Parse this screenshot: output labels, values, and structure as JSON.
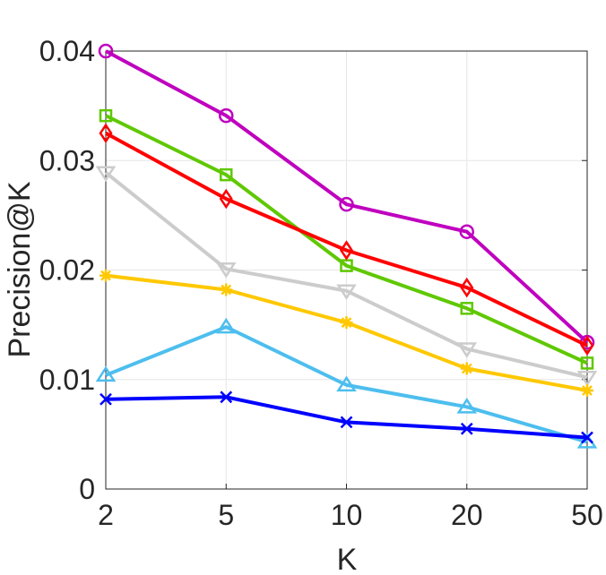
{
  "chart_data": {
    "type": "line",
    "xlabel": "K",
    "ylabel": "Precision@K",
    "categories": [
      "2",
      "5",
      "10",
      "20",
      "50"
    ],
    "ylim": [
      0,
      0.04
    ],
    "yticks": [
      "0",
      "0.01",
      "0.02",
      "0.03",
      "0.04"
    ],
    "grid": true,
    "series": [
      {
        "color": "#bf00bf",
        "marker": "circle",
        "values": [
          0.04,
          0.0341,
          0.026,
          0.0235,
          0.0134
        ]
      },
      {
        "color": "#5fc800",
        "marker": "square",
        "values": [
          0.0341,
          0.0287,
          0.0204,
          0.0165,
          0.0115
        ]
      },
      {
        "color": "#ff0000",
        "marker": "diamond",
        "values": [
          0.0325,
          0.0265,
          0.0218,
          0.0184,
          0.0131
        ]
      },
      {
        "color": "#cccccc",
        "marker": "triangle-down",
        "values": [
          0.0289,
          0.0201,
          0.0181,
          0.0128,
          0.0102
        ]
      },
      {
        "color": "#ffc800",
        "marker": "asterisk",
        "values": [
          0.0195,
          0.0182,
          0.0152,
          0.011,
          0.009
        ]
      },
      {
        "color": "#4dbeee",
        "marker": "triangle-up",
        "values": [
          0.0104,
          0.0148,
          0.0095,
          0.0075,
          0.0043
        ]
      },
      {
        "color": "#0000ff",
        "marker": "x",
        "values": [
          0.0082,
          0.0084,
          0.0061,
          0.0055,
          0.0047
        ]
      }
    ]
  }
}
